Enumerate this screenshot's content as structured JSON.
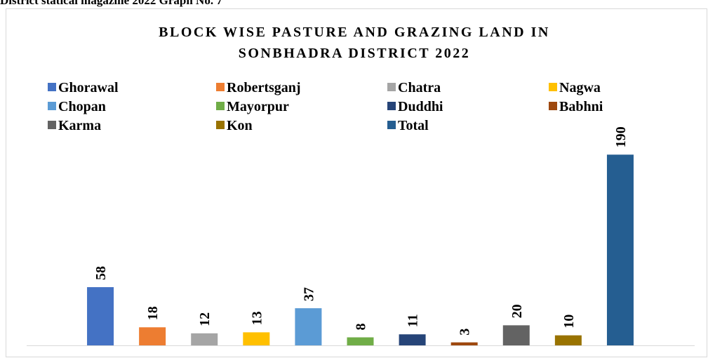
{
  "page_header": "District statical magazine 2022 Graph No. 7",
  "chart_data": {
    "type": "bar",
    "title": [
      "BLOCK WISE PASTURE AND GRAZING LAND  IN",
      "SONBHADRA DISTRICT 2022"
    ],
    "categories": [
      null
    ],
    "series": [
      {
        "name": "Ghorawal",
        "color": "#4472c4",
        "values": [
          58
        ]
      },
      {
        "name": "Robertsganj",
        "color": "#ed7d31",
        "values": [
          18
        ]
      },
      {
        "name": "Chatra",
        "color": "#a5a5a5",
        "values": [
          12
        ]
      },
      {
        "name": "Nagwa",
        "color": "#ffc000",
        "values": [
          13
        ]
      },
      {
        "name": "Chopan",
        "color": "#5b9bd5",
        "values": [
          37
        ]
      },
      {
        "name": "Mayorpur",
        "color": "#70ad47",
        "values": [
          8
        ]
      },
      {
        "name": "Duddhi",
        "color": "#264478",
        "values": [
          11
        ]
      },
      {
        "name": "Babhni",
        "color": "#9e480e",
        "values": [
          3
        ]
      },
      {
        "name": "Karma",
        "color": "#636363",
        "values": [
          20
        ]
      },
      {
        "name": "Kon",
        "color": "#997300",
        "values": [
          10
        ]
      },
      {
        "name": "Total",
        "color": "#255e91",
        "values": [
          190
        ]
      }
    ],
    "ylim": [
      0,
      200
    ],
    "legend": "top"
  }
}
